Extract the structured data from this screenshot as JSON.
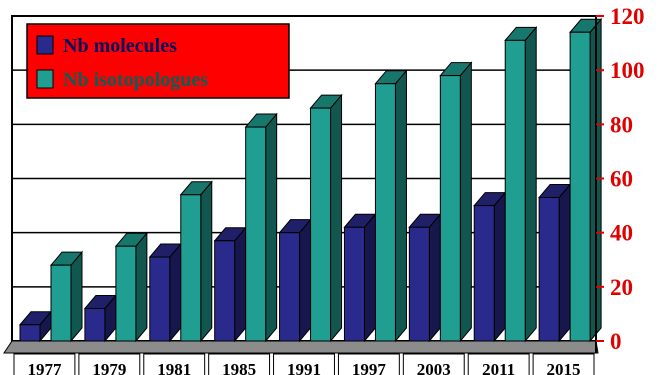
{
  "chart_data": {
    "type": "bar",
    "style": "3d-clustered-column",
    "categories": [
      "1977",
      "1979",
      "1981",
      "1985",
      "1991",
      "1997",
      "2003",
      "2011",
      "2015"
    ],
    "series": [
      {
        "name": "Nb molecules",
        "color": "#2a2a8c",
        "values": [
          6,
          12,
          31,
          37,
          40,
          42,
          42,
          50,
          53
        ]
      },
      {
        "name": "Nb isotopologues",
        "color": "#1f9e91",
        "values": [
          28,
          35,
          54,
          79,
          86,
          95,
          98,
          111,
          114
        ]
      }
    ],
    "ylim": [
      0,
      120
    ],
    "yticks": [
      0,
      20,
      40,
      60,
      80,
      100,
      120
    ],
    "ytick_color": "#e00000",
    "grid": true,
    "legend": {
      "placement": "top-left",
      "background": "#ff0000"
    }
  }
}
